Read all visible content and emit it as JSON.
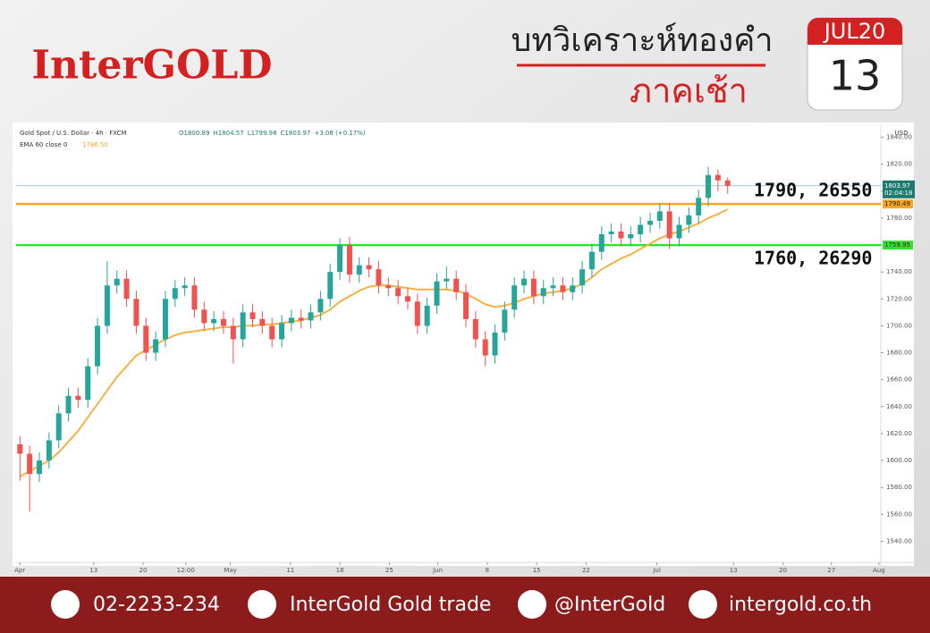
{
  "header": {
    "brand": "InterGOLD",
    "title": "บทวิเคราะห์ทองคำ",
    "subtitle": "ภาคเช้า",
    "calendar": {
      "month": "JUL20",
      "day": "13"
    }
  },
  "chart_data": {
    "type": "candlestick",
    "symbol": "Gold Spot / U.S. Dollar · 4h · FXCM",
    "ohlc_text": [
      "O1800.89",
      "H1804.57",
      "L1799.98",
      "C1803.97",
      "+3.08 (+0.17%)"
    ],
    "indicator": "EMA 60 close 0",
    "indicator_value": "1786.50",
    "currency": "USD",
    "up_color": "#26a69a",
    "down_color": "#ef5350",
    "x": [
      0,
      1,
      2,
      3,
      4,
      5,
      6,
      7,
      8,
      9,
      10,
      11,
      12,
      13,
      14,
      15,
      16,
      17,
      18,
      19,
      20,
      21,
      22,
      23,
      24,
      25,
      26,
      27,
      28,
      29,
      30,
      31,
      32,
      33,
      34,
      35,
      36,
      37,
      38,
      39,
      40,
      41,
      42,
      43,
      44,
      45,
      46,
      47,
      48,
      49,
      50,
      51,
      52,
      53,
      54,
      55,
      56,
      57,
      58,
      59,
      60,
      61,
      62,
      63,
      64,
      65,
      66,
      67,
      68,
      69,
      70,
      71,
      72,
      73
    ],
    "open": [
      1612,
      1605,
      1590,
      1600,
      1615,
      1635,
      1648,
      1645,
      1670,
      1700,
      1730,
      1735,
      1720,
      1700,
      1680,
      1690,
      1720,
      1728,
      1730,
      1712,
      1702,
      1705,
      1700,
      1690,
      1710,
      1705,
      1700,
      1690,
      1702,
      1706,
      1704,
      1710,
      1720,
      1740,
      1760,
      1738,
      1745,
      1742,
      1730,
      1728,
      1722,
      1718,
      1700,
      1715,
      1733,
      1735,
      1725,
      1705,
      1690,
      1678,
      1695,
      1712,
      1730,
      1735,
      1722,
      1728,
      1730,
      1725,
      1730,
      1742,
      1755,
      1768,
      1770,
      1765,
      1768,
      1775,
      1778,
      1785,
      1765,
      1775,
      1782,
      1795,
      1812,
      1808
    ],
    "high": [
      1618,
      1611,
      1606,
      1621,
      1641,
      1654,
      1654,
      1676,
      1706,
      1748,
      1741,
      1741,
      1726,
      1706,
      1696,
      1726,
      1734,
      1736,
      1736,
      1718,
      1711,
      1711,
      1706,
      1716,
      1716,
      1711,
      1706,
      1708,
      1712,
      1712,
      1716,
      1726,
      1746,
      1765,
      1766,
      1751,
      1751,
      1748,
      1736,
      1734,
      1728,
      1724,
      1721,
      1739,
      1744,
      1741,
      1731,
      1711,
      1696,
      1701,
      1718,
      1736,
      1741,
      1741,
      1734,
      1736,
      1736,
      1736,
      1748,
      1761,
      1774,
      1776,
      1776,
      1774,
      1781,
      1784,
      1791,
      1791,
      1781,
      1788,
      1801,
      1818,
      1816,
      1810
    ],
    "low": [
      1585,
      1562,
      1584,
      1594,
      1609,
      1629,
      1639,
      1639,
      1664,
      1694,
      1724,
      1714,
      1694,
      1674,
      1674,
      1684,
      1714,
      1722,
      1706,
      1696,
      1696,
      1694,
      1672,
      1684,
      1699,
      1694,
      1684,
      1684,
      1696,
      1698,
      1698,
      1704,
      1714,
      1734,
      1732,
      1732,
      1736,
      1724,
      1722,
      1716,
      1712,
      1694,
      1694,
      1709,
      1727,
      1719,
      1699,
      1684,
      1670,
      1672,
      1689,
      1706,
      1724,
      1716,
      1716,
      1722,
      1719,
      1719,
      1724,
      1736,
      1749,
      1762,
      1759,
      1759,
      1762,
      1769,
      1772,
      1757,
      1759,
      1769,
      1776,
      1789,
      1800,
      1798
    ],
    "close": [
      1605,
      1590,
      1600,
      1615,
      1635,
      1648,
      1645,
      1670,
      1700,
      1730,
      1735,
      1720,
      1700,
      1680,
      1690,
      1720,
      1728,
      1730,
      1712,
      1702,
      1705,
      1700,
      1690,
      1710,
      1705,
      1700,
      1690,
      1702,
      1706,
      1704,
      1710,
      1720,
      1740,
      1760,
      1738,
      1745,
      1742,
      1730,
      1728,
      1722,
      1718,
      1700,
      1715,
      1733,
      1735,
      1725,
      1705,
      1690,
      1678,
      1695,
      1712,
      1730,
      1735,
      1722,
      1728,
      1730,
      1725,
      1730,
      1742,
      1755,
      1768,
      1770,
      1765,
      1768,
      1775,
      1778,
      1785,
      1765,
      1775,
      1782,
      1795,
      1812,
      1808,
      1804
    ],
    "ema": {
      "color": "#f6b144",
      "values": [
        1588,
        1592,
        1596,
        1600,
        1606,
        1614,
        1622,
        1632,
        1642,
        1652,
        1662,
        1670,
        1678,
        1682,
        1686,
        1690,
        1693,
        1695,
        1696,
        1697,
        1698,
        1699,
        1699,
        1700,
        1700,
        1701,
        1701,
        1702,
        1703,
        1704,
        1706,
        1708,
        1712,
        1718,
        1722,
        1726,
        1729,
        1730,
        1730,
        1729,
        1728,
        1727,
        1727,
        1727,
        1727,
        1726,
        1724,
        1720,
        1716,
        1714,
        1715,
        1717,
        1720,
        1722,
        1724,
        1725,
        1726,
        1728,
        1731,
        1736,
        1742,
        1746,
        1750,
        1753,
        1757,
        1761,
        1765,
        1768,
        1770,
        1773,
        1776,
        1780,
        1783,
        1786.5
      ]
    },
    "levels": [
      {
        "value": 1790.49,
        "color": "#f6a623",
        "label": "1790, 26550"
      },
      {
        "value": 1759.95,
        "color": "#2ee62e",
        "label": "1760, 26290"
      }
    ],
    "last_price": 1803.97,
    "countdown": "02:04:18",
    "xlim": [
      -0.4,
      88.8
    ],
    "xticks": [
      {
        "value": 0,
        "label": "Apr"
      },
      {
        "value": 7.6,
        "label": "13"
      },
      {
        "value": 12.7,
        "label": "20"
      },
      {
        "value": 17.1,
        "label": "12:00"
      },
      {
        "value": 21.7,
        "label": "May"
      },
      {
        "value": 27.9,
        "label": "11"
      },
      {
        "value": 33,
        "label": "18"
      },
      {
        "value": 38.1,
        "label": "25"
      },
      {
        "value": 43.1,
        "label": "Jun"
      },
      {
        "value": 48.2,
        "label": "8"
      },
      {
        "value": 53.3,
        "label": "15"
      },
      {
        "value": 58.4,
        "label": "22"
      },
      {
        "value": 65.7,
        "label": "Jul"
      },
      {
        "value": 73.6,
        "label": "13"
      },
      {
        "value": 78.7,
        "label": "20"
      },
      {
        "value": 83.7,
        "label": "27"
      },
      {
        "value": 88.6,
        "label": "Aug"
      }
    ],
    "ylim": [
      1527,
      1849
    ],
    "yticks": [
      {
        "value": 1540,
        "label": "1540.00"
      },
      {
        "value": 1560,
        "label": "1560.00"
      },
      {
        "value": 1580,
        "label": "1580.00"
      },
      {
        "value": 1600,
        "label": "1600.00"
      },
      {
        "value": 1620,
        "label": "1620.00"
      },
      {
        "value": 1640,
        "label": "1640.00"
      },
      {
        "value": 1660,
        "label": "1660.00"
      },
      {
        "value": 1680,
        "label": "1680.00"
      },
      {
        "value": 1700,
        "label": "1700.00"
      },
      {
        "value": 1720,
        "label": "1720.00"
      },
      {
        "value": 1740,
        "label": "1740.00"
      },
      {
        "value": 1760,
        "label": "1760.00"
      },
      {
        "value": 1780,
        "label": "1780.00"
      },
      {
        "value": 1800,
        "label": "1800.00"
      },
      {
        "value": 1820,
        "label": "1820.00"
      },
      {
        "value": 1840,
        "label": "1840.00"
      }
    ]
  },
  "footer": {
    "phone": "02-2233-234",
    "facebook": "InterGold Gold trade",
    "line": "@InterGold",
    "website": "intergold.co.th"
  }
}
